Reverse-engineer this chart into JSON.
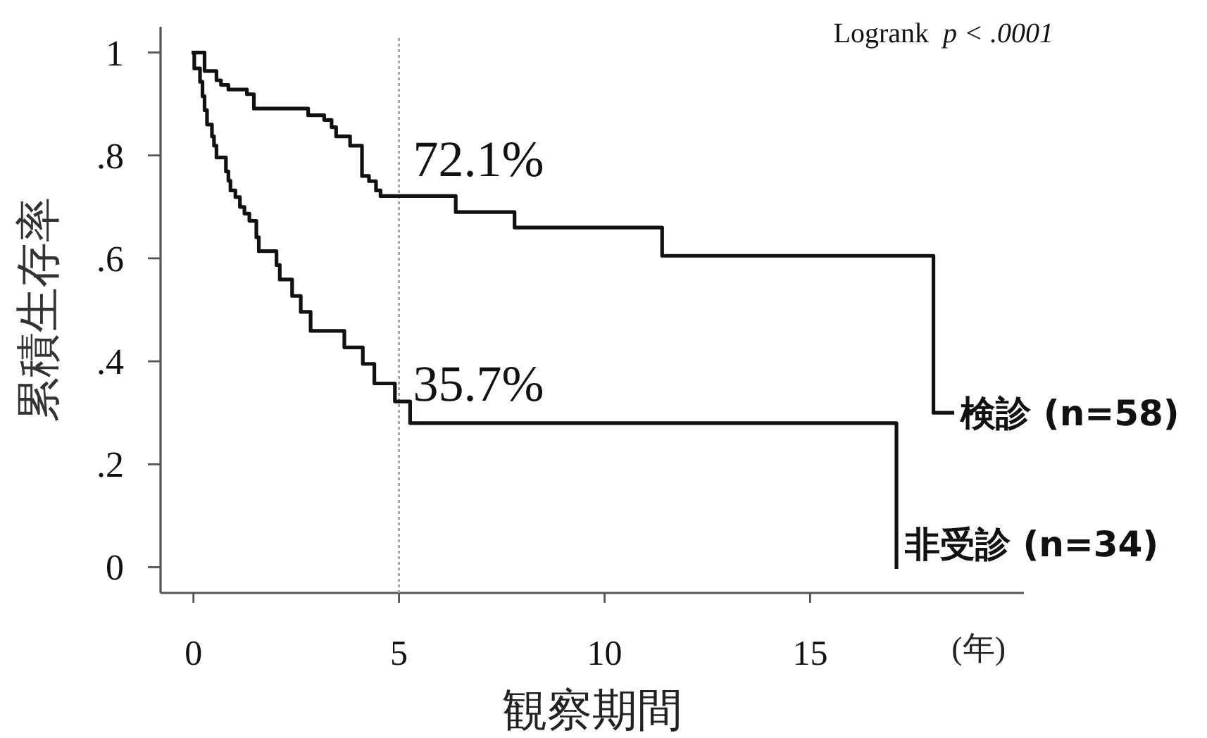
{
  "chart_data": {
    "type": "step",
    "xlabel": "観察期間",
    "ylabel": "累積生存率",
    "xlim": [
      -0.8,
      20.2
    ],
    "xticks": [
      0,
      5,
      10,
      15
    ],
    "ylim": [
      -0.05,
      1.05
    ],
    "yticks": [
      0,
      {
        "value": 0.2,
        "label": ".2"
      },
      {
        "value": 0.4,
        "label": ".4"
      },
      {
        "value": 0.6,
        "label": ".6"
      },
      {
        "value": 0.8,
        "label": ".8"
      },
      1
    ],
    "series": [
      {
        "name": "検診 (n=58)",
        "color": "#111111",
        "x": [
          0,
          0.27,
          0.56,
          0.67,
          0.85,
          1.3,
          1.47,
          2.79,
          3.18,
          3.36,
          3.47,
          3.81,
          4.1,
          4.27,
          4.44,
          4.55,
          6.38,
          7.81,
          11.4,
          18.0,
          18.46
        ],
        "values": [
          1,
          0.964,
          0.946,
          0.937,
          0.928,
          0.919,
          0.891,
          0.878,
          0.869,
          0.855,
          0.837,
          0.819,
          0.76,
          0.75,
          0.732,
          0.721,
          0.69,
          0.66,
          0.605,
          0.3,
          0.3
        ]
      },
      {
        "name": "非受診 (n=34)",
        "color": "#111111",
        "x": [
          0,
          0.02,
          0.16,
          0.22,
          0.27,
          0.33,
          0.45,
          0.5,
          0.56,
          0.79,
          0.85,
          0.9,
          1.02,
          1.13,
          1.24,
          1.36,
          1.53,
          1.59,
          2.02,
          2.1,
          2.4,
          2.61,
          2.85,
          3.67,
          4.12,
          4.4,
          4.9,
          5.27,
          17.1
        ],
        "values": [
          1,
          0.969,
          0.943,
          0.915,
          0.888,
          0.86,
          0.837,
          0.819,
          0.796,
          0.769,
          0.751,
          0.732,
          0.719,
          0.7,
          0.687,
          0.673,
          0.641,
          0.614,
          0.587,
          0.559,
          0.527,
          0.496,
          0.459,
          0.427,
          0.395,
          0.357,
          0.322,
          0.28,
          0
        ]
      }
    ],
    "ref_lines": [
      {
        "axis": "x",
        "value": 5,
        "color": "#a0a0a0",
        "line_style": "dotted"
      }
    ],
    "annotations": [
      "Logrank  *p < .0001*",
      {
        "text": "72.1%",
        "x": 5,
        "y": 0.721
      },
      {
        "text": "35.7%",
        "x": 5,
        "y": 0.357
      },
      "(年)"
    ]
  }
}
